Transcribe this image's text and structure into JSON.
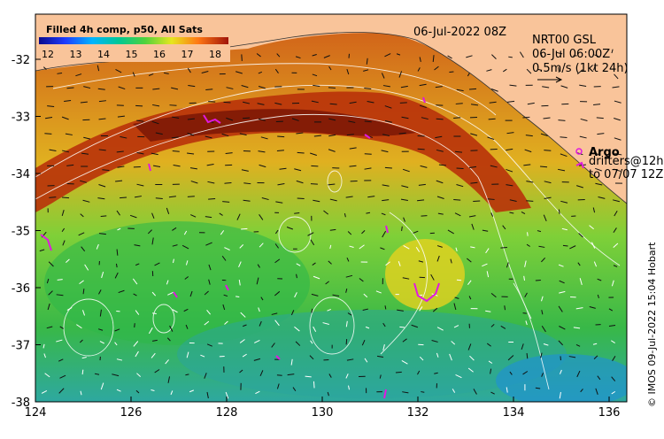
{
  "colorbar": {
    "title": "Filled 4h comp, p50, All Sats",
    "ticks": [
      "12",
      "13",
      "14",
      "15",
      "16",
      "17",
      "18"
    ]
  },
  "header": {
    "datetime": "06-Jul-2022 08Z"
  },
  "info": {
    "line1": "NRT00 GSL",
    "line2": "06-Jul 06:00Z",
    "line3": "0.5m/s (1kt 24h)"
  },
  "legend": {
    "argo_label": "Argo",
    "drifters_line1": "drifters@12h",
    "drifters_line2": "to 07/07 12Z"
  },
  "axes": {
    "x_ticks": [
      "124",
      "126",
      "128",
      "130",
      "132",
      "134",
      "136"
    ],
    "y_ticks": [
      "-32",
      "-33",
      "-34",
      "-35",
      "-36",
      "-37",
      "-38"
    ]
  },
  "credit": "© IMOS 09-Jul-2022 15:04 Hobart",
  "colors": {
    "land": "#f9c49a",
    "ocean_warm": "#c23a0a",
    "ocean_mid": "#e6d21e",
    "ocean_cool": "#3fb33f",
    "argo": "#e019e0"
  }
}
